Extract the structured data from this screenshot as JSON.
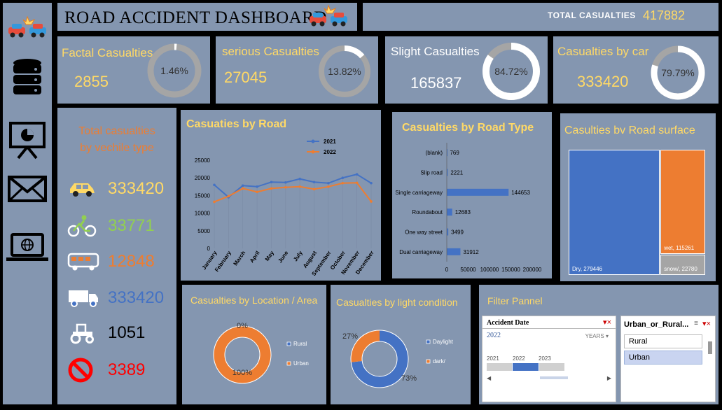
{
  "header": {
    "title": "ROAD ACCIDENT DASHBOARD",
    "total_label": "TOTAL CASUALTIES",
    "total_value": "417882"
  },
  "kpis": [
    {
      "label": "Factal Casualties",
      "value": "2855",
      "pct": "1.46%",
      "fraction": 0.0146
    },
    {
      "label": "serious Casualties",
      "value": "27045",
      "pct": "13.82%",
      "fraction": 0.1382
    },
    {
      "label": "Slight Casualties",
      "value": "165837",
      "pct": "84.72%",
      "fraction": 0.8472
    },
    {
      "label": "Casualties by car",
      "value": "333420",
      "pct": "79.79%",
      "fraction": 0.7979
    }
  ],
  "vehicle": {
    "title_line1": "Total casualties",
    "title_line2": "by vechile type",
    "rows": [
      {
        "icon": "car-icon",
        "value": "333420",
        "color": "#ffd966"
      },
      {
        "icon": "bicycle-icon",
        "value": "33771",
        "color": "#92d050"
      },
      {
        "icon": "bus-icon",
        "value": "12848",
        "color": "#ed7d31"
      },
      {
        "icon": "truck-icon",
        "value": "333420",
        "color": "#4472c4"
      },
      {
        "icon": "tractor-icon",
        "value": "1051",
        "color": "#000000"
      },
      {
        "icon": "prohibited-icon",
        "value": "3389",
        "color": "#ff0000"
      }
    ]
  },
  "colors": {
    "blue": "#4472c4",
    "orange": "#ed7d31",
    "gold": "#ffd966",
    "panel": "#8496b0"
  },
  "chart_data": [
    {
      "type": "line",
      "title": "Casuaties by Road",
      "categories": [
        "January",
        "February",
        "March",
        "April",
        "May",
        "June",
        "July",
        "August",
        "September",
        "October",
        "November",
        "December"
      ],
      "series": [
        {
          "name": "2021",
          "values": [
            18000,
            14500,
            17800,
            17500,
            18800,
            18700,
            19700,
            18800,
            18500,
            20000,
            21000,
            18500
          ]
        },
        {
          "name": "2022",
          "values": [
            13200,
            14800,
            17000,
            16000,
            17000,
            17300,
            17500,
            16800,
            17500,
            18500,
            18600,
            13300
          ]
        }
      ],
      "y_ticks": [
        "0",
        "5000",
        "10000",
        "15000",
        "20000",
        "25000"
      ],
      "ylim": [
        0,
        25000
      ],
      "legend": "top-right"
    },
    {
      "type": "bar",
      "title": "Casualties by Road Type",
      "categories": [
        "(blank)",
        "Slip road",
        "Single carriageway",
        "Roundabout",
        "One way street",
        "Dual carriageway"
      ],
      "values": [
        769,
        2221,
        144653,
        12683,
        3499,
        31912
      ],
      "x_ticks": [
        "0",
        "50000",
        "100000",
        "150000",
        "200000"
      ],
      "xlim": [
        0,
        200000
      ]
    },
    {
      "type": "treemap",
      "title": "Casulties bv Road surface",
      "items": [
        {
          "label": "Dry, 279446",
          "value": 279446,
          "color": "#4472c4"
        },
        {
          "label": "wet, 115261",
          "value": 115261,
          "color": "#ed7d31"
        },
        {
          "label": "snow/, 22780",
          "value": 22780,
          "color": "#a5a5a5"
        }
      ]
    },
    {
      "type": "pie",
      "title": "Casualties by Location / Area",
      "labels": [
        "Rural",
        "Urban"
      ],
      "legend_labels": [
        "Rural",
        "Urban"
      ],
      "values": [
        0,
        100
      ],
      "value_labels": [
        "0%",
        "100%"
      ]
    },
    {
      "type": "pie",
      "title": "Casualties by light condition",
      "labels": [
        "Daylight",
        "dark/"
      ],
      "legend_labels": [
        "Daylight",
        "dark/"
      ],
      "values": [
        73,
        27
      ],
      "value_labels": [
        "73%",
        "27%"
      ]
    }
  ],
  "filter": {
    "title": "Filter Pannel",
    "date_slicer": {
      "title": "Accident Date",
      "selected": "2022",
      "period": "YEARS",
      "years": [
        "2021",
        "2022",
        "2023"
      ]
    },
    "area_slicer": {
      "title": "Urban_or_Rural...",
      "options": [
        "Rural",
        "Urban"
      ]
    }
  }
}
